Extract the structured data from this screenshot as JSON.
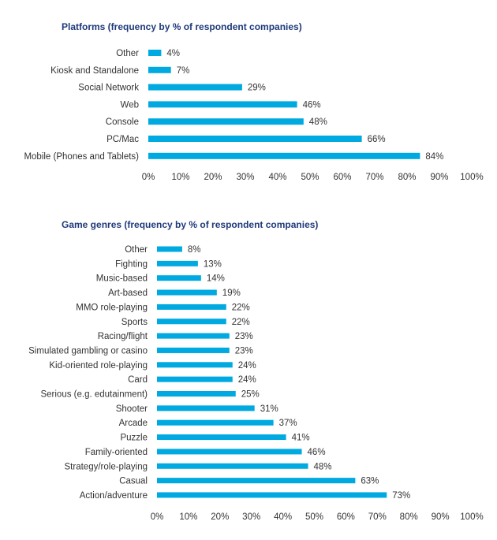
{
  "colors": {
    "bar": "#00a9e0",
    "title": "#1f3a7a",
    "text": "#333333"
  },
  "chart_data": [
    {
      "type": "bar",
      "orientation": "horizontal",
      "title": "Platforms (frequency by % of respondent companies)",
      "categories": [
        "Other",
        "Kiosk and Standalone",
        "Social Network",
        "Web",
        "Console",
        "PC/Mac",
        "Mobile (Phones and Tablets)"
      ],
      "values": [
        4,
        7,
        29,
        46,
        48,
        66,
        84
      ],
      "value_labels": [
        "4%",
        "7%",
        "29%",
        "46%",
        "48%",
        "66%",
        "84%"
      ],
      "xlim": [
        0,
        100
      ],
      "x_ticks": [
        "0%",
        "10%",
        "20%",
        "30%",
        "40%",
        "50%",
        "60%",
        "70%",
        "80%",
        "90%",
        "100%"
      ],
      "grid": false
    },
    {
      "type": "bar",
      "orientation": "horizontal",
      "title": "Game genres (frequency by % of respondent companies)",
      "categories": [
        "Other",
        "Fighting",
        "Music-based",
        "Art-based",
        "MMO role-playing",
        "Sports",
        "Racing/flight",
        "Simulated gambling or casino",
        "Kid-oriented role-playing",
        "Card",
        "Serious (e.g. edutainment)",
        "Shooter",
        "Arcade",
        "Puzzle",
        "Family-oriented",
        "Strategy/role-playing",
        "Casual",
        "Action/adventure"
      ],
      "values": [
        8,
        13,
        14,
        19,
        22,
        22,
        23,
        23,
        24,
        24,
        25,
        31,
        37,
        41,
        46,
        48,
        63,
        73
      ],
      "value_labels": [
        "8%",
        "13%",
        "14%",
        "19%",
        "22%",
        "22%",
        "23%",
        "23%",
        "24%",
        "24%",
        "25%",
        "31%",
        "37%",
        "41%",
        "46%",
        "48%",
        "63%",
        "73%"
      ],
      "xlim": [
        0,
        100
      ],
      "x_ticks": [
        "0%",
        "10%",
        "20%",
        "30%",
        "40%",
        "50%",
        "60%",
        "70%",
        "80%",
        "90%",
        "100%"
      ],
      "grid": false
    }
  ]
}
